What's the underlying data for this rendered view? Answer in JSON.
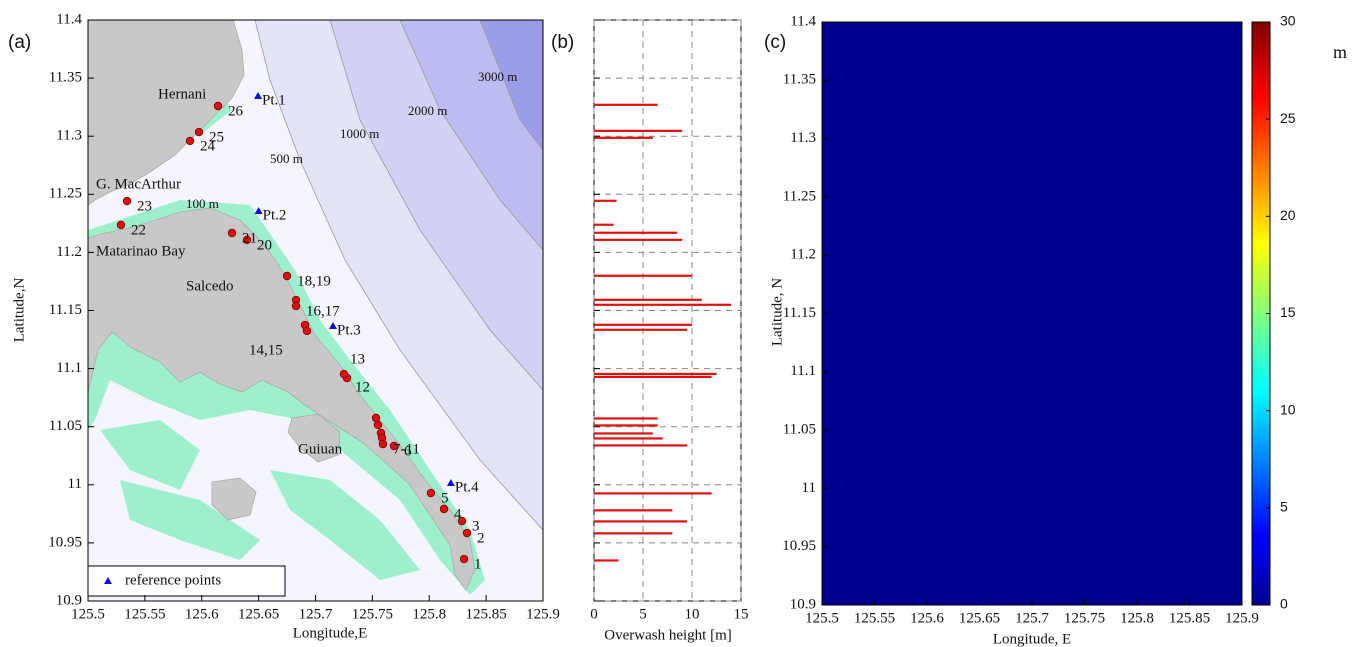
{
  "panel_a": {
    "panel_label": "(a)",
    "xlabel": "Longitude,E",
    "ylabel": "Latitude,N",
    "xlim": [
      125.5,
      125.9
    ],
    "ylim": [
      10.9,
      11.4
    ],
    "xticks": [
      125.5,
      125.55,
      125.6,
      125.65,
      125.7,
      125.75,
      125.8,
      125.85,
      125.9
    ],
    "yticks": [
      10.9,
      10.95,
      11,
      11.05,
      11.1,
      11.15,
      11.2,
      11.25,
      11.3,
      11.35,
      11.4
    ],
    "site_color": "#e01010",
    "sites": [
      {
        "label": "1",
        "lon": [
          125.8306
        ],
        "lat": [
          10.9361
        ]
      },
      {
        "label": "2",
        "lon": [
          125.8332
        ],
        "lat": [
          10.9585
        ]
      },
      {
        "label": "3",
        "lon": [
          125.8288
        ],
        "lat": [
          10.9688
        ]
      },
      {
        "label": "4",
        "lon": [
          125.813
        ],
        "lat": [
          10.9792
        ]
      },
      {
        "label": "5",
        "lon": [
          125.8015
        ],
        "lat": [
          10.9929
        ]
      },
      {
        "label": "6",
        "lon": [
          125.769
        ],
        "lat": [
          11.0334
        ]
      },
      {
        "label": "7-11",
        "lon": [
          125.7532,
          125.7549,
          125.7576,
          125.7585,
          125.7593
        ],
        "lat": [
          11.0575,
          11.0515,
          11.0446,
          11.0403,
          11.0351
        ]
      },
      {
        "label": "12",
        "lon": [
          125.7277
        ],
        "lat": [
          11.0919
        ]
      },
      {
        "label": "13",
        "lon": [
          125.725
        ],
        "lat": [
          11.0953
        ]
      },
      {
        "label": "14,15",
        "lon": [
          125.6908,
          125.6925
        ],
        "lat": [
          11.1375,
          11.1324
        ]
      },
      {
        "label": "16,17",
        "lon": [
          125.6829,
          125.6829
        ],
        "lat": [
          11.159,
          11.1539
        ]
      },
      {
        "label": "18,19",
        "lon": [
          125.675
        ],
        "lat": [
          11.1797
        ]
      },
      {
        "label": "20",
        "lon": [
          125.6398
        ],
        "lat": [
          11.2107
        ]
      },
      {
        "label": "21",
        "lon": [
          125.6266
        ],
        "lat": [
          11.2167
        ]
      },
      {
        "label": "22",
        "lon": [
          125.529
        ],
        "lat": [
          11.2236
        ]
      },
      {
        "label": "23",
        "lon": [
          125.5343
        ],
        "lat": [
          11.2442
        ]
      },
      {
        "label": "24",
        "lon": [
          125.5897
        ],
        "lat": [
          11.2959
        ]
      },
      {
        "label": "25",
        "lon": [
          125.5976
        ],
        "lat": [
          11.3036
        ]
      },
      {
        "label": "26",
        "lon": [
          125.6143
        ],
        "lat": [
          11.326
        ]
      }
    ],
    "reference_points": {
      "legend": "reference points",
      "color": "#1010d0",
      "points": [
        {
          "label": "Pt.1",
          "lon": 125.6495,
          "lat": 11.3346
        },
        {
          "label": "Pt.2",
          "lon": 125.65,
          "lat": 11.2356
        },
        {
          "label": "Pt.3",
          "lon": 125.7154,
          "lat": 11.1367
        },
        {
          "label": "Pt.4",
          "lon": 125.819,
          "lat": 11.0016
        }
      ]
    },
    "place_names": [
      "Hernani",
      "G. MacArthur",
      "Matarinao Bay",
      "Salcedo",
      "Guiuan"
    ],
    "contour_labels": [
      "100 m",
      "500 m",
      "1000 m",
      "2000 m",
      "3000 m"
    ]
  },
  "panel_b": {
    "type": "bar",
    "panel_label": "(b)",
    "xlabel": "Overwash height [m]",
    "color": "#e01010",
    "xlim": [
      0,
      15
    ],
    "xticks": [
      0,
      5,
      10,
      15
    ],
    "ylim": [
      10.9,
      11.4
    ],
    "yticks": [
      10.9,
      10.95,
      11,
      11.05,
      11.1,
      11.15,
      11.2,
      11.25,
      11.3,
      11.35,
      11.4
    ],
    "grid": true,
    "y": [
      11.327,
      11.3046,
      11.2986,
      11.2444,
      11.2238,
      11.2169,
      11.2108,
      11.1799,
      11.1592,
      11.1549,
      11.1377,
      11.1334,
      11.0954,
      11.0928,
      11.0571,
      11.0511,
      11.0442,
      11.0399,
      11.0339,
      10.9926,
      10.978,
      10.9685,
      10.9582,
      10.9349
    ],
    "values": [
      6.5,
      9,
      6,
      2.3,
      2,
      8.5,
      9,
      10,
      11,
      14,
      10,
      9.5,
      12.5,
      12,
      6.5,
      6.5,
      6,
      7,
      9.5,
      12,
      8,
      9.5,
      8,
      2.5
    ]
  },
  "panel_c": {
    "type": "heatmap",
    "panel_label": "(c)",
    "xlabel": "Longitude, E",
    "ylabel": "Latitude, N",
    "xlim": [
      125.5,
      125.9
    ],
    "ylim": [
      10.9,
      11.4
    ],
    "xticks": [
      125.5,
      125.55,
      125.6,
      125.65,
      125.7,
      125.75,
      125.8,
      125.85,
      125.9
    ],
    "yticks": [
      10.9,
      10.95,
      11,
      11.05,
      11.1,
      11.15,
      11.2,
      11.25,
      11.3,
      11.35,
      11.4
    ],
    "colorbar": {
      "label": "m",
      "lim": [
        0,
        30
      ],
      "ticks": [
        0,
        5,
        10,
        15,
        20,
        25,
        30
      ]
    }
  }
}
